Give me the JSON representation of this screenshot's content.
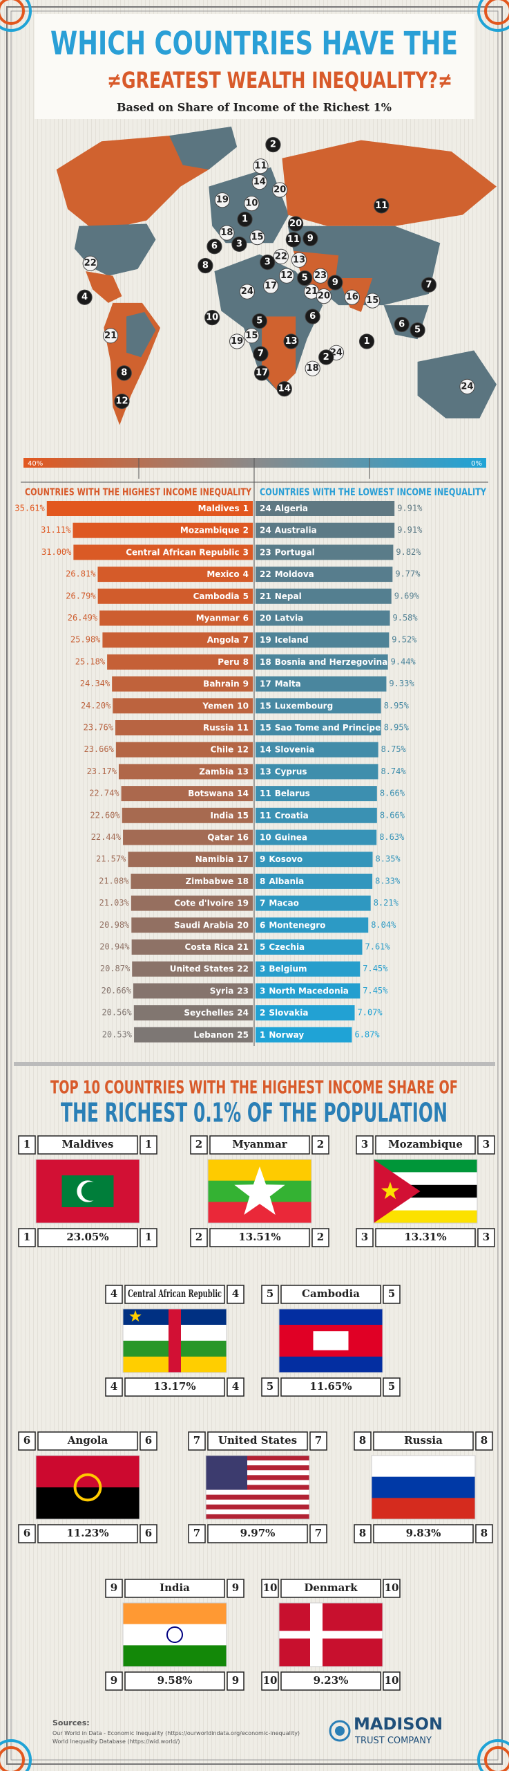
{
  "header": {
    "title_line1": "WHICH COUNTRIES HAVE THE",
    "title_line2": "≠GREATEST WEALTH INEQUALITY?≠",
    "subtitle": "Based on Share of Income of the Richest 1%"
  },
  "map": {
    "markers": [
      2,
      11,
      14,
      20,
      19,
      10,
      1,
      20,
      9,
      11,
      11,
      6,
      3,
      18,
      15,
      8,
      3,
      22,
      13,
      12,
      5,
      23,
      9,
      21,
      20,
      16,
      15,
      7,
      17,
      24,
      10,
      5,
      15,
      19,
      6,
      6,
      5,
      1,
      24,
      7,
      13,
      2,
      18,
      17,
      14,
      4,
      21,
      8,
      12,
      22,
      24
    ]
  },
  "scale": {
    "left_label": "40%",
    "right_label": "0%"
  },
  "chart_data": [
    {
      "type": "bar",
      "title": "COUNTRIES WITH THE HIGHEST INCOME INEQUALITY",
      "categories": [
        "Maldives",
        "Mozambique",
        "Central African Republic",
        "Mexico",
        "Cambodia",
        "Myanmar",
        "Angola",
        "Peru",
        "Bahrain",
        "Yemen",
        "Russia",
        "Chile",
        "Zambia",
        "Botswana",
        "India",
        "Qatar",
        "Namibia",
        "Zimbabwe",
        "Cote d'Ivoire",
        "Saudi Arabia",
        "Costa Rica",
        "United States",
        "Syria",
        "Seychelles",
        "Lebanon"
      ],
      "ranks": [
        1,
        2,
        3,
        4,
        5,
        6,
        7,
        8,
        9,
        10,
        11,
        12,
        13,
        14,
        15,
        16,
        17,
        18,
        19,
        20,
        21,
        22,
        23,
        24,
        25
      ],
      "values": [
        35.61,
        31.11,
        31.0,
        26.81,
        26.79,
        26.49,
        25.98,
        25.18,
        24.34,
        24.2,
        23.76,
        23.66,
        23.17,
        22.74,
        22.6,
        22.44,
        21.57,
        21.08,
        21.03,
        20.98,
        20.94,
        20.87,
        20.66,
        20.56,
        20.53
      ],
      "value_labels": [
        "35.61%",
        "31.11%",
        "31.00%",
        "26.81%",
        "26.79%",
        "26.49%",
        "25.98%",
        "25.18%",
        "24.34%",
        "24.20%",
        "23.76%",
        "23.66%",
        "23.17%",
        "22.74%",
        "22.60%",
        "22.44%",
        "21.57%",
        "21.08%",
        "21.03%",
        "20.98%",
        "20.94%",
        "20.87%",
        "20.66%",
        "20.56%",
        "20.53%"
      ],
      "xlim": [
        0,
        40
      ],
      "color_start": "#e2571e",
      "color_end": "#7d7774"
    },
    {
      "type": "bar",
      "title": "COUNTRIES WITH THE LOWEST INCOME INEQUALITY",
      "categories": [
        "Algeria",
        "Australia",
        "Portugal",
        "Moldova",
        "Nepal",
        "Latvia",
        "Iceland",
        "Bosnia and Herzegovina",
        "Malta",
        "Luxembourg",
        "Sao Tome and Principe",
        "Slovenia",
        "Cyprus",
        "Belarus",
        "Croatia",
        "Guinea",
        "Kosovo",
        "Albania",
        "Macao",
        "Montenegro",
        "Czechia",
        "Belgium",
        "North Macedonia",
        "Slovakia",
        "Norway"
      ],
      "ranks": [
        24,
        24,
        23,
        22,
        21,
        20,
        19,
        18,
        17,
        15,
        15,
        14,
        13,
        11,
        11,
        10,
        9,
        8,
        7,
        6,
        5,
        3,
        3,
        2,
        1
      ],
      "values": [
        9.91,
        9.91,
        9.82,
        9.77,
        9.69,
        9.58,
        9.52,
        9.44,
        9.33,
        8.95,
        8.95,
        8.75,
        8.74,
        8.66,
        8.66,
        8.63,
        8.35,
        8.33,
        8.21,
        8.04,
        7.61,
        7.45,
        7.45,
        7.07,
        6.87
      ],
      "value_labels": [
        "9.91%",
        "9.91%",
        "9.82%",
        "9.77%",
        "9.69%",
        "9.58%",
        "9.52%",
        "9.44%",
        "9.33%",
        "8.95%",
        "8.95%",
        "8.75%",
        "8.74%",
        "8.66%",
        "8.66%",
        "8.63%",
        "8.35%",
        "8.33%",
        "8.21%",
        "8.04%",
        "7.61%",
        "7.45%",
        "7.45%",
        "7.07%",
        "6.87%"
      ],
      "xlim": [
        0,
        16.5
      ],
      "color_start": "#5f7882",
      "color_end": "#1fa3d6"
    }
  ],
  "top10": {
    "title_line1": "TOP 10 COUNTRIES WITH THE HIGHEST INCOME SHARE OF",
    "title_line2": "THE RICHEST 0.1% OF THE POPULATION",
    "categories": [
      "Maldives",
      "Myanmar",
      "Mozambique",
      "Central African Republic",
      "Cambodia",
      "Angola",
      "United States",
      "Russia",
      "India",
      "Denmark"
    ],
    "ranks": [
      1,
      2,
      3,
      4,
      5,
      6,
      7,
      8,
      9,
      10
    ],
    "values": [
      23.05,
      13.51,
      13.31,
      13.17,
      11.65,
      11.23,
      9.97,
      9.83,
      9.58,
      9.23
    ],
    "value_labels": [
      "23.05%",
      "13.51%",
      "13.31%",
      "13.17%",
      "11.65%",
      "11.23%",
      "9.97%",
      "9.83%",
      "9.58%",
      "9.23%"
    ]
  },
  "footer": {
    "sources_title": "Sources:",
    "sources": [
      "Our World in Data - Economic Inequality (https://ourworldindata.org/economic-inequality)",
      "World Inequality Database (https://wid.world/)"
    ],
    "brand": "MADISON",
    "brand_sub": "TRUST COMPANY"
  }
}
